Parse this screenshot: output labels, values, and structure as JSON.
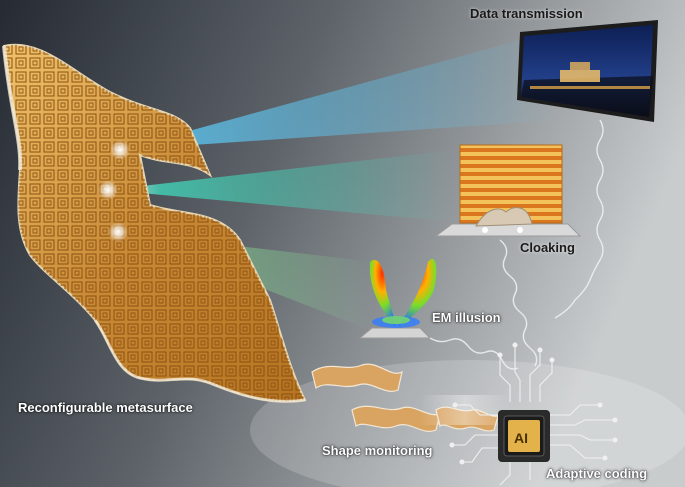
{
  "labels": {
    "data_transmission": "Data transmission",
    "cloaking": "Cloaking",
    "em_illusion": "EM illusion",
    "reconfigurable_metasurface": "Reconfigurable metasurface",
    "shape_monitoring": "Shape monitoring",
    "adaptive_coding": "Adaptive coding",
    "chip": "AI"
  },
  "colors": {
    "background_dark": "#2a3038",
    "background_light": "#b9bdc0",
    "metasurface_gold": "#c8893a",
    "beam_blue": "#4fc3ff",
    "beam_teal": "#3fe0c8",
    "beam_green": "#7ff0a8",
    "chip_gold": "#e3b24a",
    "circuit_line": "#f0f0f0"
  },
  "icons": {
    "display": "monitor-icon",
    "chip": "ai-chip-icon",
    "lobes": "radiation-pattern-icon"
  }
}
